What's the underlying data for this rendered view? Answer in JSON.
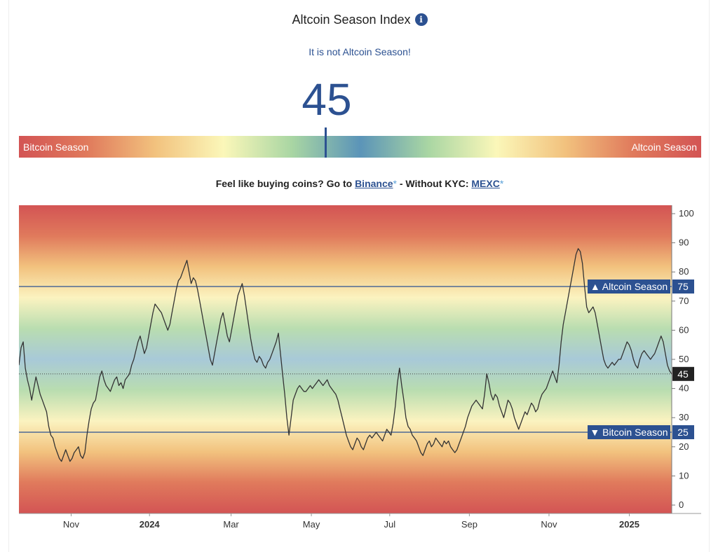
{
  "header": {
    "title": "Altcoin Season Index",
    "info_icon": "info-icon",
    "status": "It is not Altcoin Season!",
    "value": "45"
  },
  "gauge": {
    "left_label": "Bitcoin Season",
    "right_label": "Altcoin Season",
    "value": 45
  },
  "promo": {
    "prefix": "Feel like buying coins? Go to ",
    "link1": "Binance",
    "star": "*",
    "middle": " - Without KYC: ",
    "link2": "MEXC"
  },
  "colors": {
    "accent": "#2c5191",
    "season_red": "#d35454",
    "neutral_blue": "#5b94b8"
  },
  "chart_data": {
    "type": "line",
    "ylim": [
      0,
      100
    ],
    "y_ticks": [
      0,
      10,
      20,
      30,
      40,
      50,
      60,
      70,
      80,
      90,
      100
    ],
    "x_ticks": [
      {
        "label": "Nov",
        "t": 0.08,
        "bold": false
      },
      {
        "label": "2024",
        "t": 0.2,
        "bold": true
      },
      {
        "label": "Mar",
        "t": 0.325,
        "bold": false
      },
      {
        "label": "May",
        "t": 0.448,
        "bold": false
      },
      {
        "label": "Jul",
        "t": 0.568,
        "bold": false
      },
      {
        "label": "Sep",
        "t": 0.69,
        "bold": false
      },
      {
        "label": "Nov",
        "t": 0.812,
        "bold": false
      },
      {
        "label": "2025",
        "t": 0.935,
        "bold": true
      }
    ],
    "thresholds": [
      {
        "label": "Altcoin Season",
        "value": 75,
        "arrow": "▲"
      },
      {
        "label": "Bitcoin Season",
        "value": 25,
        "arrow": "▼"
      }
    ],
    "current_value": 45,
    "series": [
      {
        "values": [
          48,
          54,
          56,
          47,
          43,
          40,
          36,
          40,
          44,
          41,
          38,
          36,
          34,
          32,
          27,
          24,
          23,
          20,
          18,
          16,
          15,
          17,
          19,
          17,
          15,
          16,
          18,
          19,
          20,
          17,
          16,
          18,
          24,
          29,
          33,
          35,
          36,
          40,
          44,
          46,
          43,
          41,
          40,
          39,
          41,
          43,
          44,
          41,
          42,
          40,
          43,
          44,
          45,
          48,
          50,
          53,
          56,
          58,
          55,
          52,
          54,
          58,
          62,
          66,
          69,
          68,
          67,
          66,
          64,
          62,
          60,
          62,
          66,
          70,
          74,
          77,
          78,
          80,
          82,
          84,
          80,
          76,
          78,
          77,
          74,
          70,
          66,
          62,
          58,
          54,
          50,
          48,
          52,
          56,
          60,
          64,
          66,
          62,
          58,
          56,
          60,
          64,
          68,
          72,
          74,
          76,
          72,
          67,
          62,
          57,
          53,
          50,
          49,
          51,
          50,
          48,
          47,
          49,
          50,
          52,
          54,
          56,
          59,
          52,
          45,
          38,
          30,
          24,
          30,
          36,
          38,
          40,
          41,
          40,
          39,
          39,
          40,
          41,
          40,
          41,
          42,
          43,
          42,
          41,
          42,
          43,
          41,
          40,
          39,
          38,
          36,
          33,
          30,
          27,
          24,
          22,
          20,
          19,
          21,
          23,
          22,
          20,
          19,
          21,
          23,
          24,
          23,
          24,
          25,
          24,
          23,
          22,
          24,
          26,
          25,
          24,
          28,
          34,
          42,
          47,
          41,
          36,
          30,
          27,
          26,
          24,
          23,
          22,
          20,
          18,
          17,
          19,
          21,
          22,
          20,
          21,
          23,
          22,
          21,
          20,
          22,
          21,
          22,
          20,
          19,
          18,
          19,
          21,
          23,
          25,
          27,
          30,
          32,
          34,
          35,
          36,
          35,
          34,
          33,
          38,
          45,
          42,
          38,
          36,
          38,
          37,
          34,
          32,
          30,
          33,
          36,
          35,
          33,
          30,
          28,
          26,
          28,
          30,
          32,
          31,
          33,
          35,
          34,
          32,
          33,
          36,
          38,
          39,
          40,
          42,
          44,
          46,
          44,
          42,
          48,
          56,
          62,
          66,
          70,
          74,
          78,
          82,
          86,
          88,
          87,
          83,
          75,
          68,
          66,
          67,
          68,
          66,
          62,
          58,
          54,
          50,
          48,
          47,
          48,
          49,
          48,
          49,
          50,
          50,
          52,
          54,
          56,
          55,
          53,
          50,
          48,
          47,
          50,
          52,
          53,
          52,
          51,
          50,
          51,
          52,
          54,
          56,
          58,
          56,
          52,
          48,
          46,
          45
        ]
      }
    ]
  }
}
